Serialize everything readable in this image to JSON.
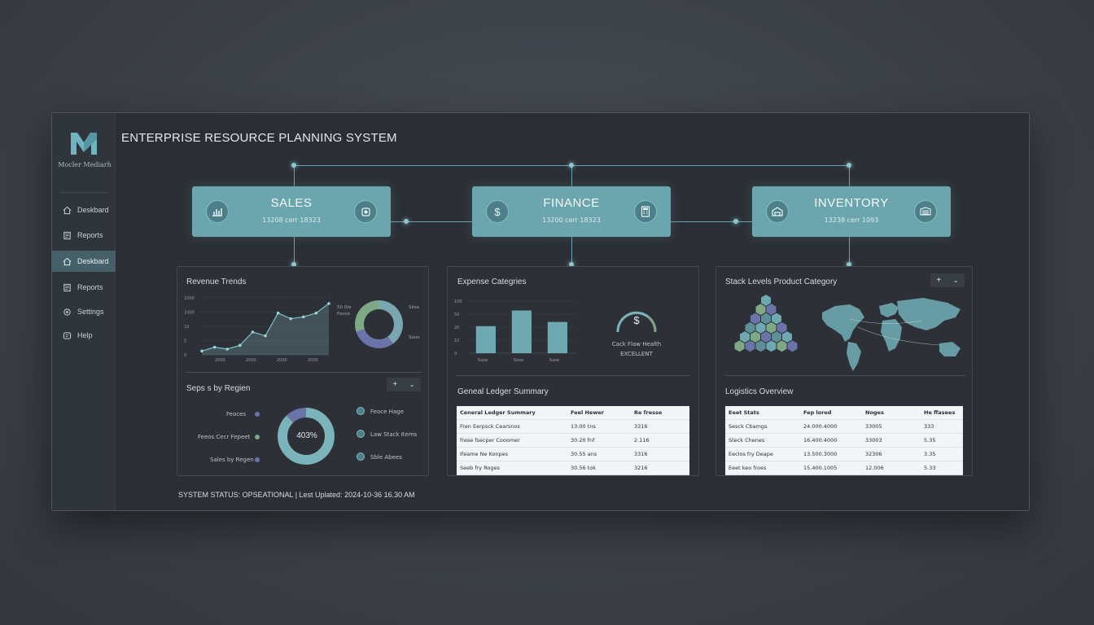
{
  "app": {
    "title": "ENTERPRISE RESOURCE PLANNING SYSTEM",
    "logo_text": "Mocler Mediarh"
  },
  "sidebar": {
    "items": [
      {
        "label": "Deskbard",
        "icon": "home-icon",
        "active": false
      },
      {
        "label": "Reports",
        "icon": "document-icon",
        "active": false
      },
      {
        "label": "Deskbard",
        "icon": "home-icon",
        "active": true
      },
      {
        "label": "Reports",
        "icon": "document-icon",
        "active": false
      },
      {
        "label": "Settings",
        "icon": "gear-icon",
        "active": false
      },
      {
        "label": "Help",
        "icon": "help-icon",
        "active": false
      }
    ]
  },
  "modules": {
    "sales": {
      "title": "SALES",
      "sub": "13208 cerr 18323",
      "left_icon": "bar-chart-icon",
      "right_icon": "box-icon"
    },
    "finance": {
      "title": "FINANCE",
      "sub": "13200 cerr 18323",
      "left_icon": "dollar-icon",
      "right_icon": "calculator-icon"
    },
    "inventory": {
      "title": "INVENTORY",
      "sub": "13238 cerr 1093",
      "left_icon": "warehouse-icon",
      "right_icon": "truck-icon"
    }
  },
  "sales_panel": {
    "title": "Revenue Trends",
    "subtitle": "Seps s by Regien",
    "donut_center": "403%",
    "region_labels": [
      "Feoces",
      "Feeos Cecr Fepeet",
      "Sales by Regen"
    ],
    "legend": [
      "Feoce Hage",
      "Law Stack Items",
      "Sble Abees"
    ],
    "controls": [
      "+",
      "⌄"
    ],
    "trend_yticks": [
      "1000",
      "1000",
      "10",
      "5",
      "0"
    ],
    "trend_xticks": [
      "2000",
      "2000",
      "2000",
      "2000"
    ],
    "mini_donut_labels": [
      "50 0/e",
      "Feoce",
      "Sbse",
      "Sooe"
    ]
  },
  "finance_panel": {
    "title": "Expense Categries",
    "subtitle": "Geneal Ledger Summary",
    "bar_yticks": [
      "100",
      "50",
      "20",
      "10",
      "0"
    ],
    "bar_xticks": [
      "Sooe",
      "Sooe",
      "Sooe"
    ],
    "gauge_symbol": "$",
    "gauge_label": "Cack Flaw Health",
    "gauge_status": "EXCELLENT",
    "table": {
      "headers": [
        "Ceneral Ledger Summary",
        "Feel Hewer",
        "Re fresse"
      ],
      "rows": [
        [
          "Fren Eerpsck Cearsnos",
          "13.00 tns",
          "3316"
        ],
        [
          "frese fsecper Cooomer",
          "30.20 fnf",
          "2.116"
        ],
        [
          "Ifeame Ne Konpes",
          "30.55 ans",
          "3316"
        ],
        [
          "Seeb fry Roges",
          "30.56 tok",
          "3216"
        ]
      ]
    }
  },
  "inventory_panel": {
    "title": "Stack Levels Product Category",
    "subtitle": "Logistics Overview",
    "controls": [
      "+",
      "⌄"
    ],
    "table": {
      "headers": [
        "Eeet Stats",
        "Fep lored",
        "Noges",
        "He ffasees"
      ],
      "rows": [
        [
          "Sesck Cbamgs",
          "24.000.4000",
          "33005",
          "333"
        ],
        [
          "Steck Chenes",
          "16.400.4000",
          "33003",
          "5.35"
        ],
        [
          "Eeclos fry Deape",
          "13.500.3000",
          "32306",
          "3.35"
        ],
        [
          "Eeet keo froes",
          "15.400.1005",
          "12.006",
          "5.33"
        ]
      ]
    }
  },
  "status_bar": {
    "text": "SYSTEM STATUS: OPSEATIONAL  |  Lest Uplated: 2024-10-36 16.30 AM"
  },
  "chart_data": [
    {
      "type": "line",
      "title": "Revenue Trends",
      "x": [
        1,
        2,
        3,
        4,
        5,
        6,
        7,
        8,
        9,
        10,
        11
      ],
      "values": [
        2,
        4,
        3,
        5,
        12,
        10,
        22,
        19,
        20,
        22,
        27
      ],
      "ylim": [
        0,
        30
      ]
    },
    {
      "type": "pie",
      "title": "Revenue Trends mini donut",
      "values": [
        40,
        30,
        30
      ],
      "colors": [
        "#7aa6b0",
        "#6a74a8",
        "#7fa886"
      ]
    },
    {
      "type": "pie",
      "title": "Seps s by Regien",
      "values": [
        88,
        12
      ],
      "colors": [
        "#7ab3ba",
        "#6a74a8"
      ]
    },
    {
      "type": "bar",
      "title": "Expense Categries",
      "categories": [
        "Sooe",
        "Sooe",
        "Sooe"
      ],
      "values": [
        52,
        82,
        60
      ],
      "ylim": [
        0,
        100
      ]
    }
  ]
}
